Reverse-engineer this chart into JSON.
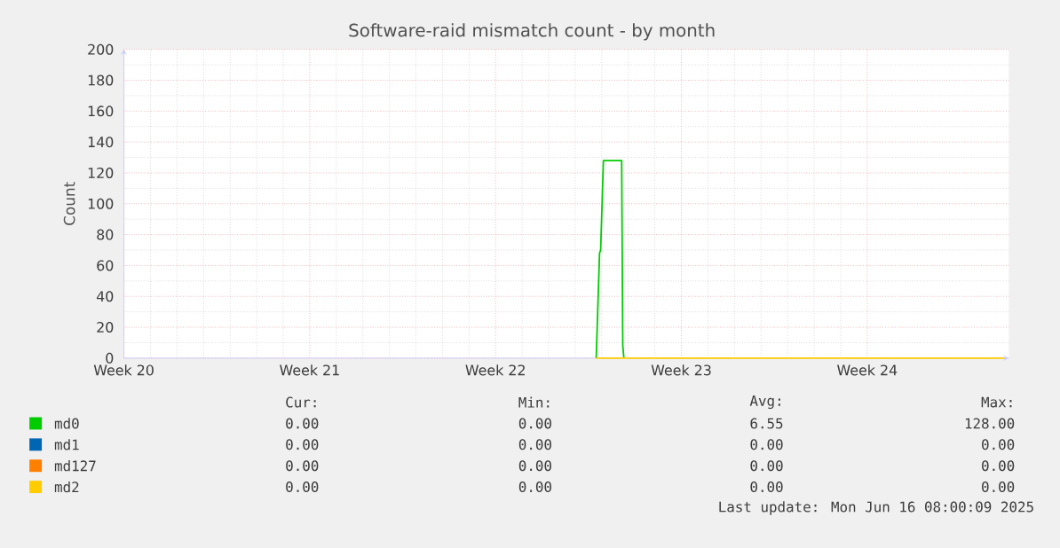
{
  "chart_data": {
    "type": "line",
    "title": "Software-raid mismatch count - by month",
    "ylabel": "Count",
    "xlim": [
      "2025-05-12",
      "2025-06-14T08:00"
    ],
    "ylim": [
      0,
      200
    ],
    "xticks": [
      {
        "value": "2025-05-12",
        "label": "Week 20"
      },
      {
        "value": "2025-05-19",
        "label": "Week 21"
      },
      {
        "value": "2025-05-26",
        "label": "Week 22"
      },
      {
        "value": "2025-06-02",
        "label": "Week 23"
      },
      {
        "value": "2025-06-09",
        "label": "Week 24"
      }
    ],
    "yticks": [
      0,
      20,
      40,
      60,
      80,
      100,
      120,
      140,
      160,
      180,
      200
    ],
    "grid": true,
    "legend": "bottom",
    "series": [
      {
        "name": "md0",
        "color": "#00cc00",
        "x": [
          "2025-05-29T19:00",
          "2025-05-29T22:00",
          "2025-05-29T23:00",
          "2025-05-30T01:30",
          "2025-05-30T18:00",
          "2025-05-30T19:00",
          "2025-05-30T20:00"
        ],
        "values": [
          0,
          68,
          70,
          128,
          128,
          8,
          0
        ]
      },
      {
        "name": "md1",
        "color": "#0066b3"
      },
      {
        "name": "md127",
        "color": "#ff8000"
      },
      {
        "name": "md2",
        "color": "#ffcc00",
        "x": [
          "2025-05-29T19:00",
          "2025-06-14T04:00"
        ],
        "values": [
          0,
          0
        ]
      }
    ],
    "annotations": [
      "Cur:",
      "Min:",
      "Avg:",
      "Max:",
      "0.00",
      "0.00",
      "6.55",
      "128.00",
      "0.00",
      "0.00",
      "0.00",
      "0.00",
      "0.00",
      "0.00",
      "0.00",
      "0.00",
      "0.00",
      "0.00",
      "0.00",
      "0.00",
      "Last update: Mon Jun 16 08:00:09 2025"
    ]
  }
}
